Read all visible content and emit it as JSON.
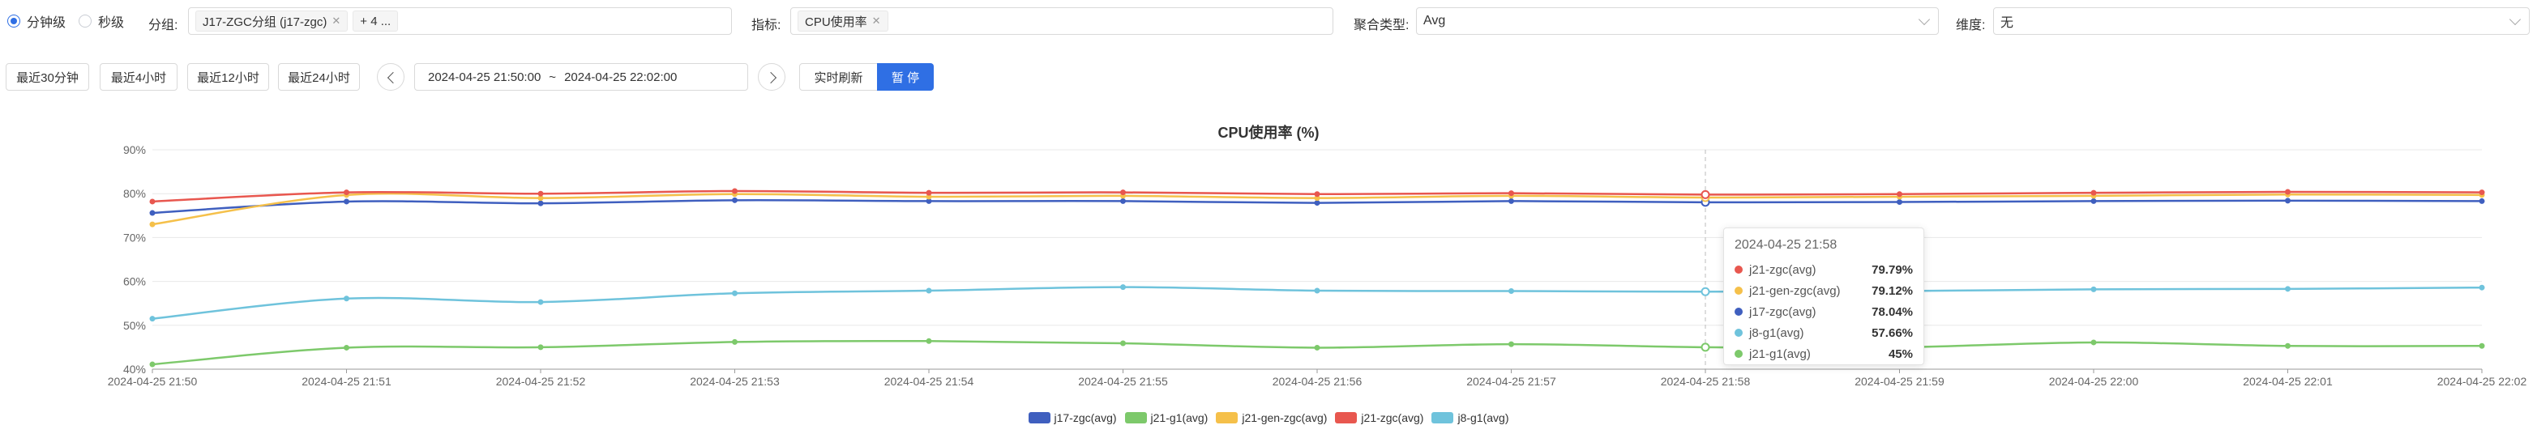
{
  "filters": {
    "granularity": {
      "options": [
        {
          "label": "分钟级",
          "selected": true
        },
        {
          "label": "秒级",
          "selected": false
        }
      ]
    },
    "group": {
      "label": "分组:",
      "tag": "J17-ZGC分组 (j17-zgc)",
      "more": "+ 4 ..."
    },
    "metric": {
      "label": "指标:",
      "tag": "CPU使用率"
    },
    "agg": {
      "label": "聚合类型:",
      "value": "Avg"
    },
    "dimension": {
      "label": "维度:",
      "value": "无"
    }
  },
  "toolbar": {
    "quick_ranges": [
      "最近30分钟",
      "最近4小时",
      "最近12小时",
      "最近24小时"
    ],
    "range_start": "2024-04-25 21:50:00",
    "range_sep": "~",
    "range_end": "2024-04-25 22:02:00",
    "realtime_label": "实时刷新",
    "pause_label": "暂 停"
  },
  "colors": {
    "accent": "#2f6fe4"
  },
  "chart_data": {
    "type": "line",
    "title": "CPU使用率 (%)",
    "xlabel": "",
    "ylabel": "",
    "ylim": [
      40,
      90
    ],
    "yticks": [
      "40%",
      "50%",
      "60%",
      "70%",
      "80%",
      "90%"
    ],
    "x": [
      "2024-04-25 21:50",
      "2024-04-25 21:51",
      "2024-04-25 21:52",
      "2024-04-25 21:53",
      "2024-04-25 21:54",
      "2024-04-25 21:55",
      "2024-04-25 21:56",
      "2024-04-25 21:57",
      "2024-04-25 21:58",
      "2024-04-25 21:59",
      "2024-04-25 22:00",
      "2024-04-25 22:01",
      "2024-04-25 22:02"
    ],
    "series": [
      {
        "name": "j17-zgc(avg)",
        "color": "#3f5fbf",
        "values": [
          75.6,
          78.2,
          77.8,
          78.5,
          78.3,
          78.3,
          77.9,
          78.3,
          78.04,
          78.1,
          78.3,
          78.4,
          78.3
        ]
      },
      {
        "name": "j21-g1(avg)",
        "color": "#7dc96b",
        "values": [
          41.1,
          44.9,
          45.0,
          46.2,
          46.4,
          45.9,
          44.9,
          45.7,
          45.0,
          45.0,
          46.1,
          45.3,
          45.3
        ]
      },
      {
        "name": "j21-gen-zgc(avg)",
        "color": "#f5c04a",
        "values": [
          73.0,
          79.7,
          79.0,
          79.9,
          79.3,
          79.5,
          79.0,
          79.5,
          79.12,
          79.3,
          79.5,
          79.8,
          79.7
        ]
      },
      {
        "name": "j21-zgc(avg)",
        "color": "#e8574f",
        "values": [
          78.2,
          80.3,
          80.0,
          80.6,
          80.2,
          80.3,
          79.9,
          80.1,
          79.79,
          79.9,
          80.2,
          80.4,
          80.3
        ]
      },
      {
        "name": "j8-g1(avg)",
        "color": "#6fc3dc",
        "values": [
          51.5,
          56.1,
          55.3,
          57.3,
          57.9,
          58.7,
          57.9,
          57.8,
          57.66,
          57.8,
          58.2,
          58.3,
          58.6
        ]
      }
    ],
    "legend_position": "bottom",
    "grid": true,
    "tooltip": {
      "time": "2024-04-25 21:58",
      "rows": [
        {
          "name": "j21-zgc(avg)",
          "value": "79.79%",
          "color": "#e8574f"
        },
        {
          "name": "j21-gen-zgc(avg)",
          "value": "79.12%",
          "color": "#f5c04a"
        },
        {
          "name": "j17-zgc(avg)",
          "value": "78.04%",
          "color": "#3f5fbf"
        },
        {
          "name": "j8-g1(avg)",
          "value": "57.66%",
          "color": "#6fc3dc"
        },
        {
          "name": "j21-g1(avg)",
          "value": "45%",
          "color": "#7dc96b"
        }
      ]
    }
  }
}
